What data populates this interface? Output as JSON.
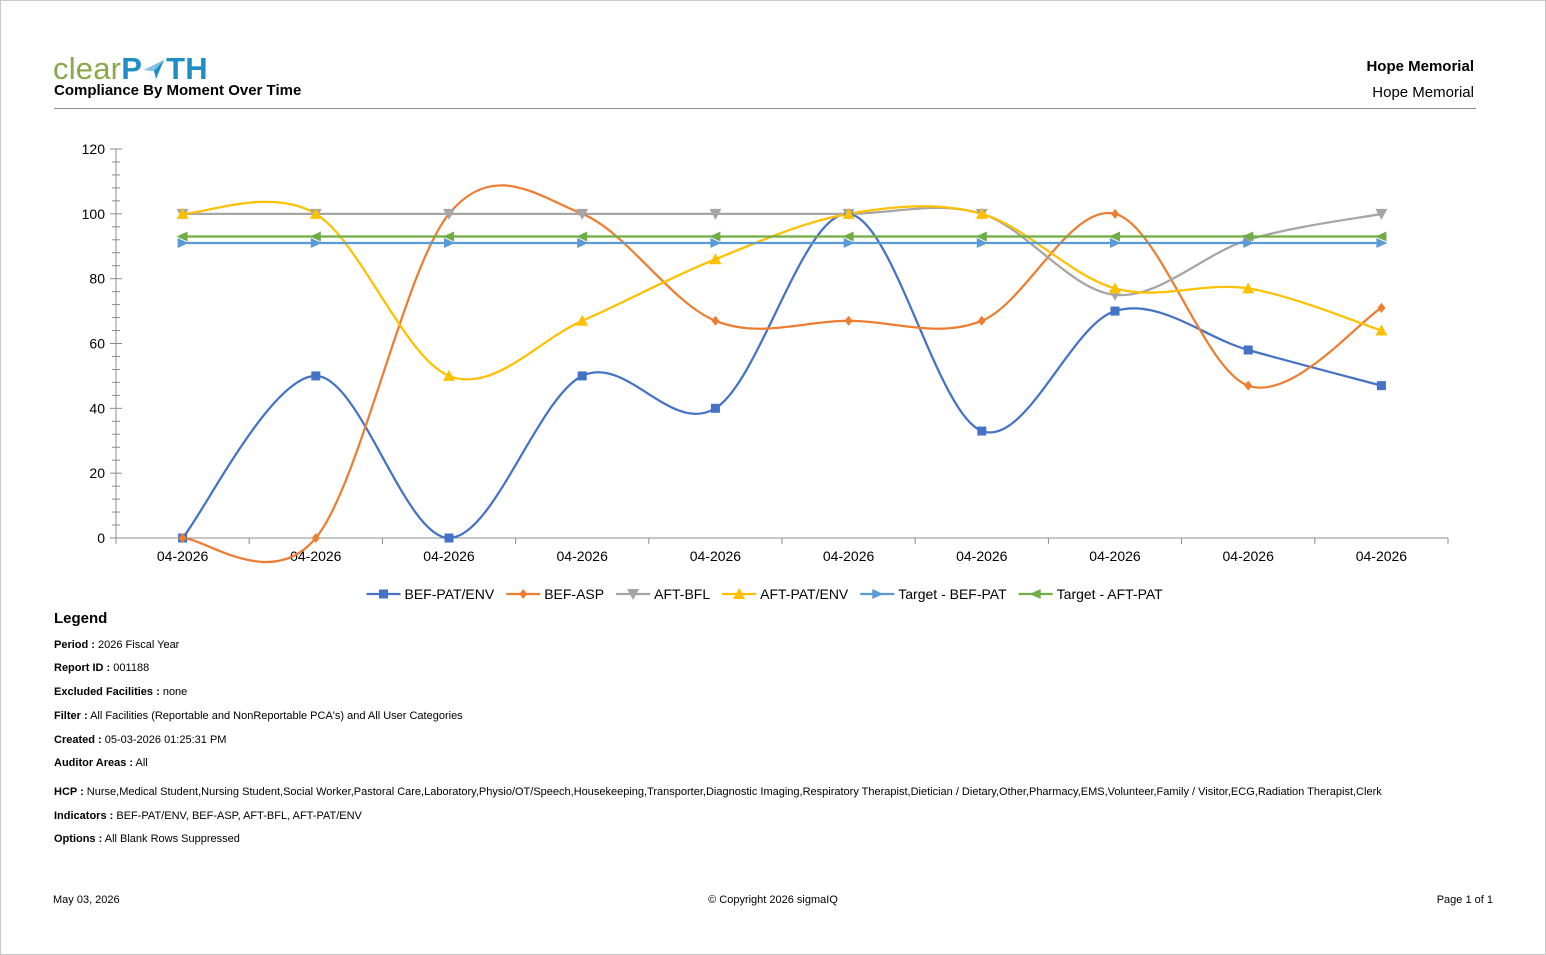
{
  "header": {
    "logo_text_1": "clear",
    "logo_text_2": "P",
    "logo_text_3": "TH",
    "report_title": "Compliance By Moment Over Time",
    "facility_bold": "Hope Memorial",
    "facility_normal": "Hope Memorial"
  },
  "colors": {
    "BEF-PAT/ENV": "#4472c4",
    "BEF-ASP": "#ed7d31",
    "AFT-BFL": "#a5a5a5",
    "AFT-PAT/ENV": "#ffc000",
    "Target - BEF-PAT": "#5b9bd5",
    "Target - AFT-PAT": "#70ad47"
  },
  "chart_data": {
    "type": "line",
    "smooth": true,
    "categories": [
      "04-2026",
      "04-2026",
      "04-2026",
      "04-2026",
      "04-2026",
      "04-2026",
      "04-2026",
      "04-2026",
      "04-2026",
      "04-2026"
    ],
    "ylim": [
      0,
      120
    ],
    "yticks": [
      0,
      20,
      40,
      60,
      80,
      100,
      120
    ],
    "legend_position": "bottom",
    "grid": false,
    "series": [
      {
        "name": "BEF-PAT/ENV",
        "marker": "square",
        "values": [
          0,
          50,
          0,
          50,
          40,
          100,
          33,
          70,
          58,
          47
        ]
      },
      {
        "name": "BEF-ASP",
        "marker": "diamond",
        "values": [
          0,
          0,
          100,
          100,
          67,
          67,
          67,
          100,
          47,
          71
        ]
      },
      {
        "name": "AFT-BFL",
        "marker": "triangle-down",
        "values": [
          100,
          100,
          100,
          100,
          100,
          100,
          100,
          75,
          92,
          100
        ]
      },
      {
        "name": "AFT-PAT/ENV",
        "marker": "triangle-up",
        "values": [
          100,
          100,
          50,
          67,
          86,
          100,
          100,
          77,
          77,
          64
        ]
      },
      {
        "name": "Target - BEF-PAT",
        "marker": "triangle-right",
        "values": [
          91,
          91,
          91,
          91,
          91,
          91,
          91,
          91,
          91,
          91
        ]
      },
      {
        "name": "Target - AFT-PAT",
        "marker": "triangle-left",
        "values": [
          93,
          93,
          93,
          93,
          93,
          93,
          93,
          93,
          93,
          93
        ]
      }
    ]
  },
  "legend_section": {
    "title": "Legend",
    "items": [
      {
        "label": "Period :",
        "value": "2026 Fiscal Year"
      },
      {
        "label": "Report ID :",
        "value": "001188"
      },
      {
        "label": "Excluded Facilities :",
        "value": "none"
      },
      {
        "label": "Filter :",
        "value": "All Facilities (Reportable and NonReportable PCA's) and All User Categories"
      },
      {
        "label": "Created :",
        "value": "05-03-2026 01:25:31 PM"
      },
      {
        "label": "Auditor Areas :",
        "value": "All"
      },
      {
        "label": "HCP :",
        "value": "Nurse,Medical Student,Nursing Student,Social Worker,Pastoral Care,Laboratory,Physio/OT/Speech,Housekeeping,Transporter,Diagnostic Imaging,Respiratory Therapist,Dietician / Dietary,Other,Pharmacy,EMS,Volunteer,Family / Visitor,ECG,Radiation Therapist,Clerk"
      },
      {
        "label": "Indicators :",
        "value": "BEF-PAT/ENV, BEF-ASP, AFT-BFL, AFT-PAT/ENV"
      },
      {
        "label": "Options :",
        "value": "All Blank Rows Suppressed"
      }
    ]
  },
  "footer": {
    "date": "May 03, 2026",
    "copyright": "© Copyright 2026 sigmaIQ",
    "page": "Page 1 of 1"
  }
}
